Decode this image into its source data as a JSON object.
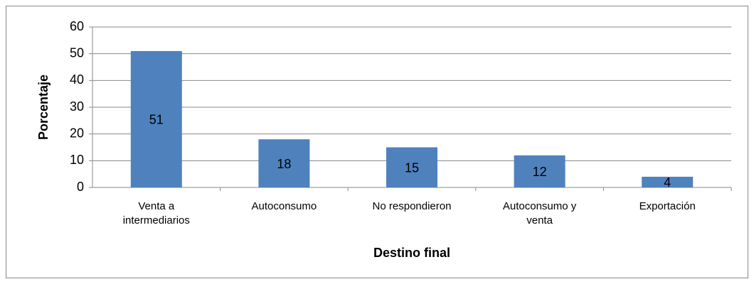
{
  "chart_data": {
    "type": "bar",
    "categories": [
      "Venta a intermediarios",
      "Autoconsumo",
      "No respondieron",
      "Autoconsumo y venta",
      "Exportación"
    ],
    "values": [
      51,
      18,
      15,
      12,
      4
    ],
    "color": "#4f81bd",
    "xlabel": "Destino final",
    "ylabel": "Porcentaje",
    "ylim": [
      0,
      60
    ],
    "yticks": [
      0,
      10,
      20,
      30,
      40,
      50,
      60
    ],
    "grid": true
  }
}
